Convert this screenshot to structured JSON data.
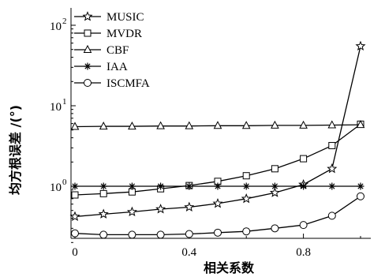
{
  "chart_data": {
    "type": "line",
    "xlabel": "相关系数",
    "ylabel": "均方根误差 /(°)",
    "xlim": [
      0,
      1.05
    ],
    "ylim": [
      0.2,
      120
    ],
    "yscale": "log",
    "grid": false,
    "legend_position": "top-left",
    "x_ticks": [
      {
        "value": 0,
        "label": "0"
      },
      {
        "value": 0.4,
        "label": "0.4"
      },
      {
        "value": 0.8,
        "label": "0.8"
      }
    ],
    "y_ticks": [
      {
        "value": 1,
        "base": "10",
        "exp": "0"
      },
      {
        "value": 10,
        "base": "10",
        "exp": "1"
      },
      {
        "value": 100,
        "base": "10",
        "exp": "2"
      }
    ],
    "x": [
      0,
      0.1,
      0.2,
      0.3,
      0.4,
      0.5,
      0.6,
      0.7,
      0.8,
      0.9,
      1.0
    ],
    "series": [
      {
        "name": "MUSIC",
        "marker": "star5",
        "values": [
          0.42,
          0.45,
          0.48,
          0.52,
          0.55,
          0.61,
          0.7,
          0.83,
          1.05,
          1.65,
          55
        ]
      },
      {
        "name": "MVDR",
        "marker": "square",
        "values": [
          0.78,
          0.81,
          0.85,
          0.93,
          1.02,
          1.15,
          1.35,
          1.65,
          2.2,
          3.2,
          5.9
        ]
      },
      {
        "name": "CBF",
        "marker": "triangle",
        "values": [
          5.5,
          5.55,
          5.55,
          5.6,
          5.6,
          5.65,
          5.65,
          5.7,
          5.7,
          5.75,
          5.8
        ]
      },
      {
        "name": "IAA",
        "marker": "asterisk",
        "values": [
          1.0,
          1.0,
          1.0,
          1.0,
          1.0,
          1.0,
          1.0,
          1.0,
          1.0,
          1.0,
          1.0
        ]
      },
      {
        "name": "ISCMFA",
        "marker": "circle",
        "values": [
          0.26,
          0.25,
          0.25,
          0.25,
          0.255,
          0.265,
          0.275,
          0.3,
          0.33,
          0.43,
          0.75
        ]
      }
    ]
  }
}
